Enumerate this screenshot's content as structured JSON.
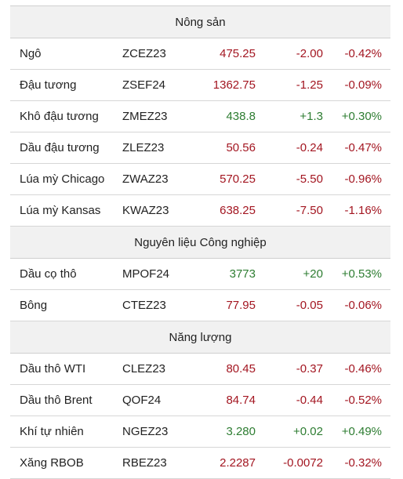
{
  "colors": {
    "up": "#2e7d32",
    "down": "#a31621",
    "header_bg": "#f1f1f1"
  },
  "sections": [
    {
      "title": "Nông sản",
      "rows": [
        {
          "name": "Ngô",
          "code": "ZCEZ23",
          "price": "475.25",
          "change": "-2.00",
          "pct": "-0.42%",
          "dir": "down"
        },
        {
          "name": "Đậu tương",
          "code": "ZSEF24",
          "price": "1362.75",
          "change": "-1.25",
          "pct": "-0.09%",
          "dir": "down"
        },
        {
          "name": "Khô đậu tương",
          "code": "ZMEZ23",
          "price": "438.8",
          "change": "+1.3",
          "pct": "+0.30%",
          "dir": "up"
        },
        {
          "name": "Dầu đậu tương",
          "code": "ZLEZ23",
          "price": "50.56",
          "change": "-0.24",
          "pct": "-0.47%",
          "dir": "down"
        },
        {
          "name": "Lúa mỳ Chicago",
          "code": "ZWAZ23",
          "price": "570.25",
          "change": "-5.50",
          "pct": "-0.96%",
          "dir": "down"
        },
        {
          "name": "Lúa mỳ Kansas",
          "code": "KWAZ23",
          "price": "638.25",
          "change": "-7.50",
          "pct": "-1.16%",
          "dir": "down"
        }
      ]
    },
    {
      "title": "Nguyên liệu Công nghiệp",
      "rows": [
        {
          "name": "Dầu cọ thô",
          "code": "MPOF24",
          "price": "3773",
          "change": "+20",
          "pct": "+0.53%",
          "dir": "up"
        },
        {
          "name": "Bông",
          "code": "CTEZ23",
          "price": "77.95",
          "change": "-0.05",
          "pct": "-0.06%",
          "dir": "down"
        }
      ]
    },
    {
      "title": "Năng lượng",
      "rows": [
        {
          "name": "Dầu thô WTI",
          "code": "CLEZ23",
          "price": "80.45",
          "change": "-0.37",
          "pct": "-0.46%",
          "dir": "down"
        },
        {
          "name": "Dầu thô Brent",
          "code": "QOF24",
          "price": "84.74",
          "change": "-0.44",
          "pct": "-0.52%",
          "dir": "down"
        },
        {
          "name": "Khí tự nhiên",
          "code": "NGEZ23",
          "price": "3.280",
          "change": "+0.02",
          "pct": "+0.49%",
          "dir": "up"
        },
        {
          "name": "Xăng RBOB",
          "code": "RBEZ23",
          "price": "2.2287",
          "change": "-0.0072",
          "pct": "-0.32%",
          "dir": "down"
        }
      ]
    }
  ]
}
